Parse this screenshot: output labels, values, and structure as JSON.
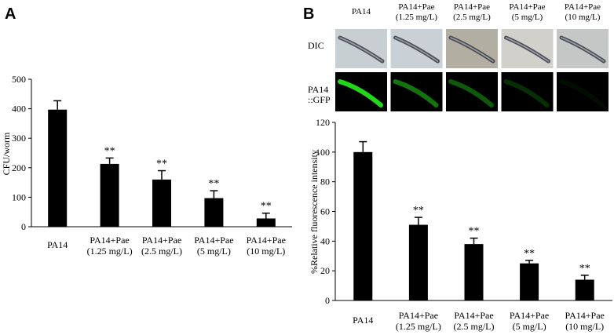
{
  "panels": {
    "a_label": "A",
    "b_label": "B"
  },
  "image_grid": {
    "columns": [
      [
        "PA14"
      ],
      [
        "PA14+Pae",
        "(1.25 mg/L)"
      ],
      [
        "PA14+Pae",
        "(2.5 mg/L)"
      ],
      [
        "PA14+Pae",
        "(5 mg/L)"
      ],
      [
        "PA14+Pae",
        "(10 mg/L)"
      ]
    ],
    "row_labels": [
      [
        "DIC"
      ],
      [
        "PA14",
        "::GFP"
      ]
    ],
    "dic_bg_colors": [
      "#c7cfd3",
      "#c9d1d6",
      "#b2aea2",
      "#d1d0cb",
      "#c4c7c6"
    ],
    "gfp_intensity": [
      1.0,
      0.55,
      0.42,
      0.22,
      0.06
    ],
    "gfp_color": "#22d619"
  },
  "chart_data": [
    {
      "type": "bar",
      "panel": "A",
      "categories": [
        [
          "PA14"
        ],
        [
          "PA14+Pae",
          "(1.25 mg/L)"
        ],
        [
          "PA14+Pae",
          "(2.5 mg/L)"
        ],
        [
          "PA14+Pae",
          "(5 mg/L)"
        ],
        [
          "PA14+Pae",
          "(10 mg/L)"
        ]
      ],
      "values": [
        397,
        213,
        160,
        97,
        28
      ],
      "errors": [
        30,
        20,
        30,
        25,
        18
      ],
      "significance": [
        "",
        "**",
        "**",
        "**",
        "**"
      ],
      "ylabel": "CFU/worm",
      "ylim": [
        0,
        500
      ],
      "yticks": [
        0,
        100,
        200,
        300,
        400,
        500
      ],
      "color": "#000000"
    },
    {
      "type": "bar",
      "panel": "B",
      "categories": [
        [
          "PA14"
        ],
        [
          "PA14+Pae",
          "(1.25 mg/L)"
        ],
        [
          "PA14+Pae",
          "(2.5 mg/L)"
        ],
        [
          "PA14+Pae",
          "(5 mg/L)"
        ],
        [
          "PA14+Pae",
          "(10 mg/L)"
        ]
      ],
      "values": [
        100,
        51,
        38,
        25,
        14
      ],
      "errors": [
        7,
        5,
        4,
        2,
        3
      ],
      "significance": [
        "",
        "**",
        "**",
        "**",
        "**"
      ],
      "ylabel": "%Relative fluorescence intensity",
      "ylim": [
        0,
        120
      ],
      "yticks": [
        0,
        20,
        40,
        60,
        80,
        100,
        120
      ],
      "color": "#000000"
    }
  ]
}
